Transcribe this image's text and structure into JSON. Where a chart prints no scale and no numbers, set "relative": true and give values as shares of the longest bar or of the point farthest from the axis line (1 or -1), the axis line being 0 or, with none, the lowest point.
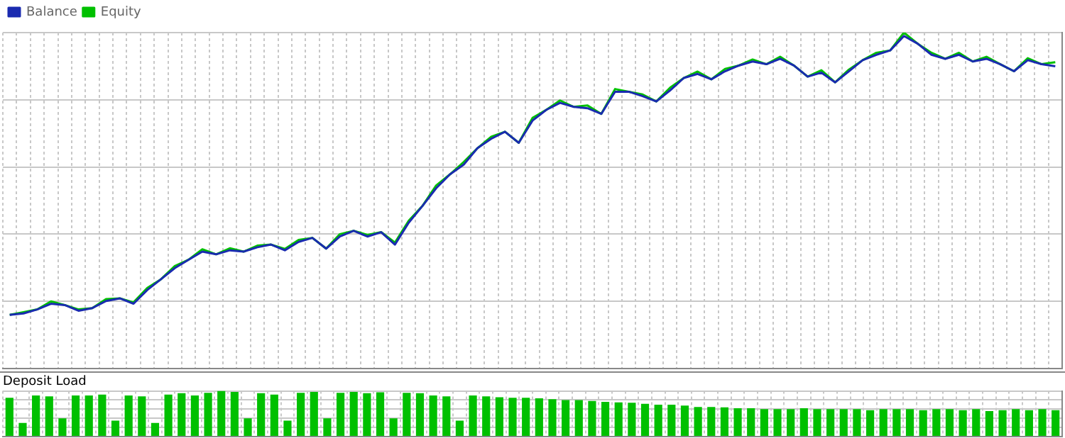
{
  "chart_data": [
    {
      "type": "line",
      "relative": true,
      "grid": true,
      "legend": "top left",
      "marker": "none",
      "line_style": "solid",
      "categories": [
        null,
        null,
        null,
        null,
        null,
        null,
        null,
        null,
        null,
        null,
        null,
        null,
        null,
        null,
        null,
        null,
        null,
        null,
        null,
        null,
        null,
        null,
        null,
        null,
        null,
        null,
        null,
        null,
        null,
        null,
        null,
        null,
        null,
        null,
        null,
        null,
        null,
        null,
        null,
        null,
        null,
        null,
        null,
        null,
        null,
        null,
        null,
        null,
        null,
        null,
        null,
        null,
        null,
        null,
        null,
        null,
        null,
        null,
        null,
        null,
        null,
        null,
        null,
        null,
        null,
        null,
        null,
        null,
        null,
        null,
        null,
        null,
        null,
        null,
        null,
        null,
        null
      ],
      "series": [
        {
          "name": "Balance",
          "color": "#1a2bb0",
          "values": [
            0.16,
            0.164,
            0.176,
            0.193,
            0.189,
            0.172,
            0.18,
            0.201,
            0.209,
            0.193,
            0.234,
            0.266,
            0.299,
            0.324,
            0.348,
            0.34,
            0.352,
            0.348,
            0.361,
            0.369,
            0.352,
            0.377,
            0.389,
            0.357,
            0.393,
            0.41,
            0.393,
            0.406,
            0.369,
            0.434,
            0.484,
            0.537,
            0.578,
            0.607,
            0.656,
            0.684,
            0.705,
            0.672,
            0.738,
            0.77,
            0.791,
            0.779,
            0.775,
            0.758,
            0.824,
            0.824,
            0.811,
            0.795,
            0.828,
            0.865,
            0.877,
            0.861,
            0.885,
            0.902,
            0.914,
            0.906,
            0.922,
            0.902,
            0.869,
            0.881,
            0.852,
            0.885,
            0.918,
            0.934,
            0.947,
            0.99,
            0.967,
            0.934,
            0.922,
            0.934,
            0.914,
            0.922,
            0.906,
            0.885,
            0.918,
            0.906,
            0.9
          ]
        },
        {
          "name": "Equity",
          "color": "#00c000",
          "values": [
            0.16,
            0.168,
            0.176,
            0.2,
            0.189,
            0.176,
            0.18,
            0.207,
            0.209,
            0.197,
            0.24,
            0.266,
            0.305,
            0.324,
            0.355,
            0.34,
            0.358,
            0.348,
            0.366,
            0.369,
            0.356,
            0.383,
            0.389,
            0.357,
            0.4,
            0.41,
            0.398,
            0.406,
            0.375,
            0.44,
            0.484,
            0.545,
            0.578,
            0.615,
            0.656,
            0.69,
            0.705,
            0.672,
            0.746,
            0.77,
            0.798,
            0.779,
            0.783,
            0.758,
            0.832,
            0.824,
            0.816,
            0.795,
            0.836,
            0.865,
            0.884,
            0.861,
            0.892,
            0.902,
            0.92,
            0.906,
            0.928,
            0.902,
            0.869,
            0.888,
            0.852,
            0.89,
            0.918,
            0.94,
            0.947,
            1,
            0.967,
            0.94,
            0.922,
            0.94,
            0.914,
            0.928,
            0.906,
            0.885,
            0.924,
            0.906,
            0.912
          ]
        }
      ]
    },
    {
      "type": "bar",
      "relative": true,
      "grid": true,
      "title": "Deposit Load",
      "color": "#00c000",
      "categories": [
        null,
        null,
        null,
        null,
        null,
        null,
        null,
        null,
        null,
        null,
        null,
        null,
        null,
        null,
        null,
        null,
        null,
        null,
        null,
        null,
        null,
        null,
        null,
        null,
        null,
        null,
        null,
        null,
        null,
        null,
        null,
        null,
        null,
        null,
        null,
        null,
        null,
        null,
        null,
        null,
        null,
        null,
        null,
        null,
        null,
        null,
        null,
        null,
        null,
        null,
        null,
        null,
        null,
        null,
        null,
        null,
        null,
        null,
        null,
        null,
        null,
        null,
        null,
        null,
        null,
        null,
        null,
        null,
        null,
        null,
        null,
        null,
        null,
        null,
        null,
        null,
        null,
        null,
        null,
        null
      ],
      "values": [
        0.85,
        0.3,
        0.9,
        0.88,
        0.4,
        0.9,
        0.9,
        0.92,
        0.35,
        0.9,
        0.88,
        0.3,
        0.92,
        0.95,
        0.9,
        0.96,
        1,
        0.98,
        0.4,
        0.95,
        0.92,
        0.35,
        0.96,
        0.98,
        0.4,
        0.96,
        0.98,
        0.95,
        0.97,
        0.4,
        0.96,
        0.95,
        0.9,
        0.88,
        0.35,
        0.9,
        0.88,
        0.86,
        0.85,
        0.85,
        0.84,
        0.82,
        0.8,
        0.8,
        0.78,
        0.76,
        0.75,
        0.74,
        0.72,
        0.7,
        0.7,
        0.68,
        0.65,
        0.65,
        0.64,
        0.62,
        0.62,
        0.6,
        0.6,
        0.6,
        0.62,
        0.6,
        0.6,
        0.6,
        0.6,
        0.58,
        0.6,
        0.6,
        0.6,
        0.58,
        0.6,
        0.6,
        0.58,
        0.6,
        0.56,
        0.58,
        0.6,
        0.58,
        0.6,
        0.58
      ]
    }
  ]
}
